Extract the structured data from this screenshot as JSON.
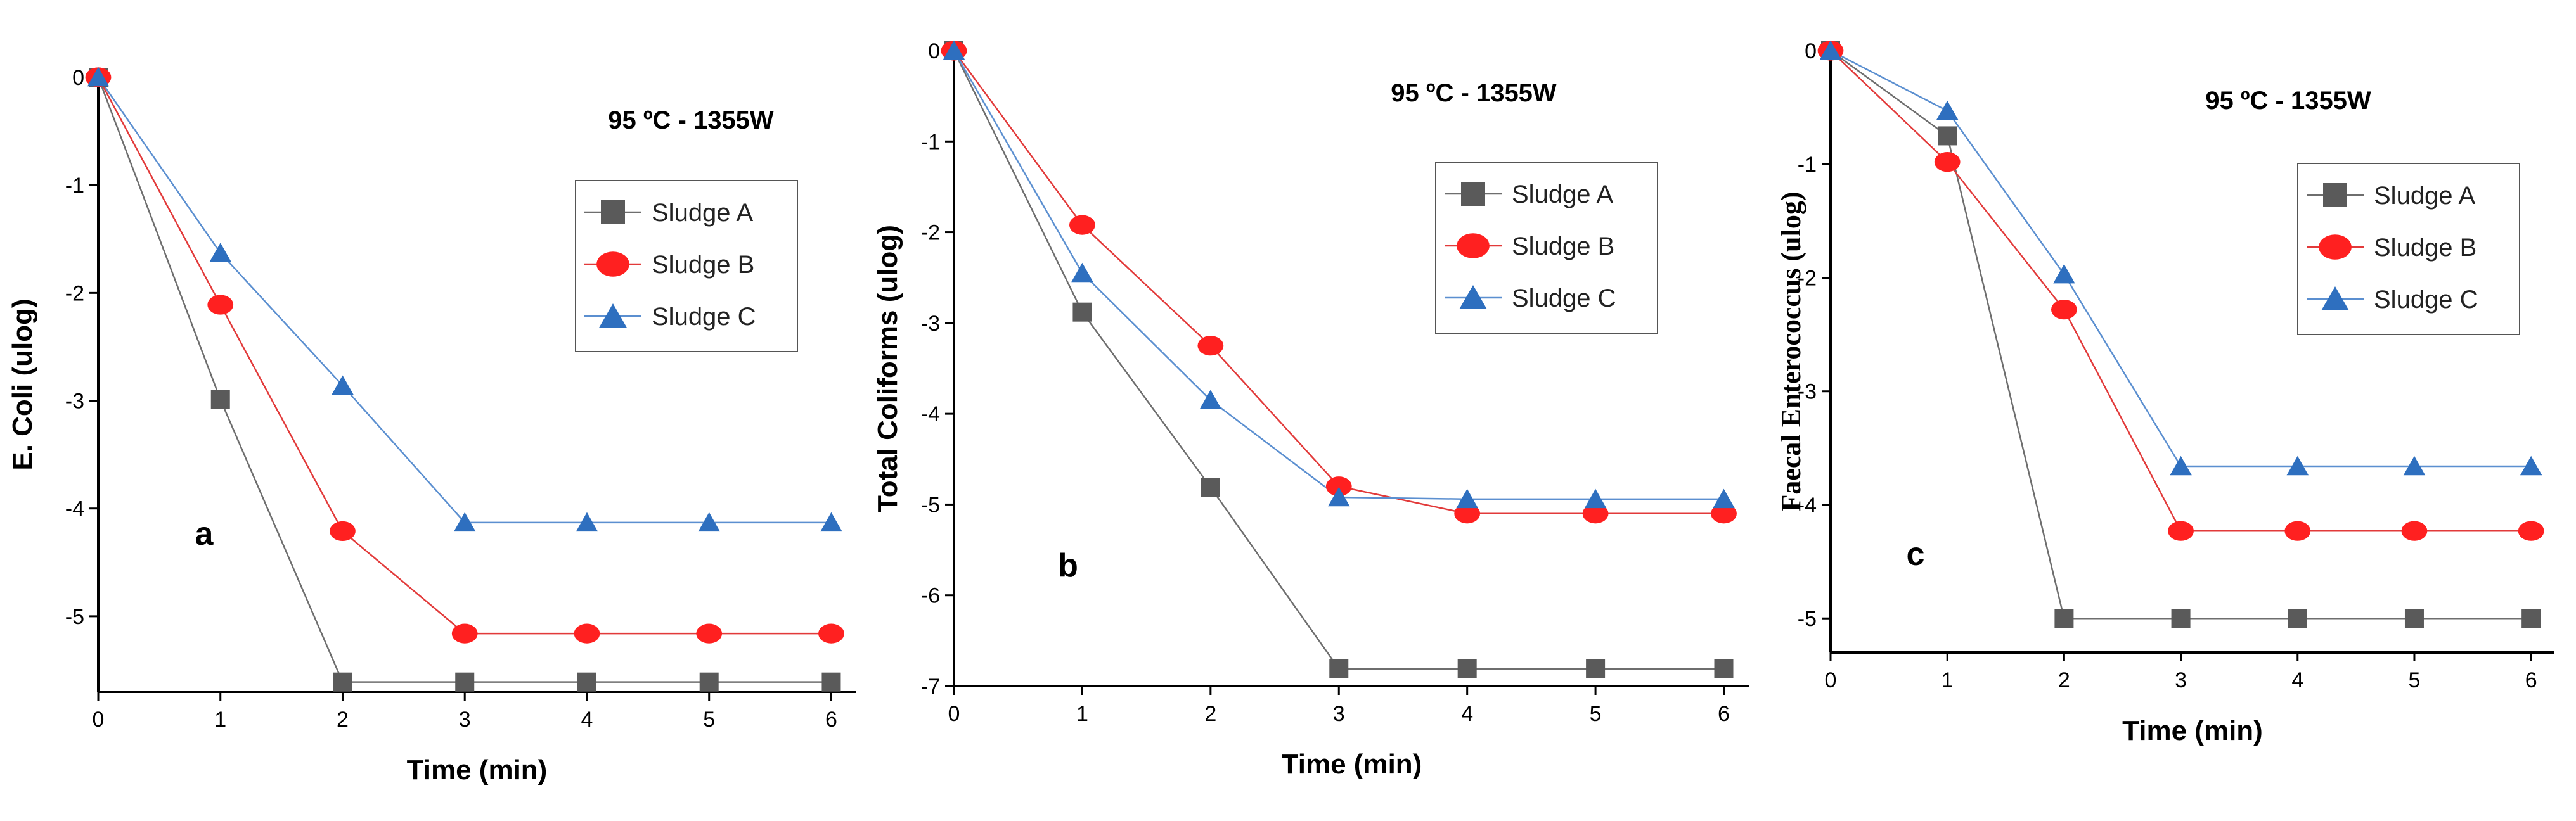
{
  "chart_data": [
    {
      "type": "line",
      "panel_label": "a",
      "header": "95 ºC - 1355W",
      "xlabel": "Time (min)",
      "ylabel": "E. Coli (ulog)",
      "xlim": [
        0,
        6.2
      ],
      "ylim": [
        -5.7,
        0
      ],
      "xticks": [
        0,
        1,
        2,
        3,
        4,
        5,
        6
      ],
      "yticks": [
        0,
        -1,
        -2,
        -3,
        -4,
        -5
      ],
      "legend_position": "top-right",
      "x": [
        0,
        1,
        2,
        3,
        4,
        5,
        6
      ],
      "series": [
        {
          "name": "Sludge A",
          "values": [
            0,
            -2.99,
            -5.61,
            -5.61,
            -5.61,
            -5.61,
            -5.61
          ],
          "marker": "square",
          "color": "#5a5a5a",
          "line_color": "#6e6e6e"
        },
        {
          "name": "Sludge B",
          "values": [
            0,
            -2.11,
            -4.21,
            -5.16,
            -5.16,
            -5.16,
            -5.16
          ],
          "marker": "circle",
          "color": "#ff2020",
          "line_color": "#e23a3a"
        },
        {
          "name": "Sludge C",
          "values": [
            0,
            -1.63,
            -2.86,
            -4.13,
            -4.13,
            -4.13,
            -4.13
          ],
          "marker": "triangle",
          "color": "#2e6fbf",
          "line_color": "#5b8fd0"
        }
      ]
    },
    {
      "type": "line",
      "panel_label": "b",
      "header": "95 ºC - 1355W",
      "xlabel": "Time (min)",
      "ylabel": "Total Coliforms (ulog)",
      "xlim": [
        0,
        6.2
      ],
      "ylim": [
        -7,
        0
      ],
      "xticks": [
        0,
        1,
        2,
        3,
        4,
        5,
        6
      ],
      "yticks": [
        0,
        -1,
        -2,
        -3,
        -4,
        -5,
        -6,
        -7
      ],
      "legend_position": "top-right",
      "x": [
        0,
        1,
        2,
        3,
        4,
        5,
        6
      ],
      "series": [
        {
          "name": "Sludge A",
          "values": [
            0,
            -2.88,
            -4.81,
            -6.81,
            -6.81,
            -6.81,
            -6.81
          ],
          "marker": "square",
          "color": "#5a5a5a",
          "line_color": "#6e6e6e"
        },
        {
          "name": "Sludge B",
          "values": [
            0,
            -1.92,
            -3.25,
            -4.8,
            -5.1,
            -5.1,
            -5.1
          ],
          "marker": "circle",
          "color": "#ff2020",
          "line_color": "#e23a3a"
        },
        {
          "name": "Sludge C",
          "values": [
            0,
            -2.45,
            -3.85,
            -4.92,
            -4.94,
            -4.94,
            -4.94
          ],
          "marker": "triangle",
          "color": "#2e6fbf",
          "line_color": "#5b8fd0"
        }
      ]
    },
    {
      "type": "line",
      "panel_label": "c",
      "header": "95 ºC - 1355W",
      "xlabel": "Time (min)",
      "ylabel": "Faecal Enterococcus (ulog)",
      "xlim": [
        0,
        6.2
      ],
      "ylim": [
        -5.3,
        0
      ],
      "xticks": [
        0,
        1,
        2,
        3,
        4,
        5,
        6
      ],
      "yticks": [
        0,
        -1,
        -2,
        -3,
        -4,
        -5
      ],
      "legend_position": "top-right",
      "x": [
        0,
        1,
        2,
        3,
        4,
        5,
        6
      ],
      "series": [
        {
          "name": "Sludge A",
          "values": [
            0,
            -0.75,
            -5.0,
            -5.0,
            -5.0,
            -5.0,
            -5.0
          ],
          "marker": "square",
          "color": "#5a5a5a",
          "line_color": "#6e6e6e"
        },
        {
          "name": "Sludge B",
          "values": [
            0,
            -0.98,
            -2.28,
            -4.23,
            -4.23,
            -4.23,
            -4.23
          ],
          "marker": "circle",
          "color": "#ff2020",
          "line_color": "#e23a3a"
        },
        {
          "name": "Sludge C",
          "values": [
            0,
            -0.53,
            -1.97,
            -3.66,
            -3.66,
            -3.66,
            -3.66
          ],
          "marker": "triangle",
          "color": "#2e6fbf",
          "line_color": "#5b8fd0"
        }
      ]
    }
  ]
}
